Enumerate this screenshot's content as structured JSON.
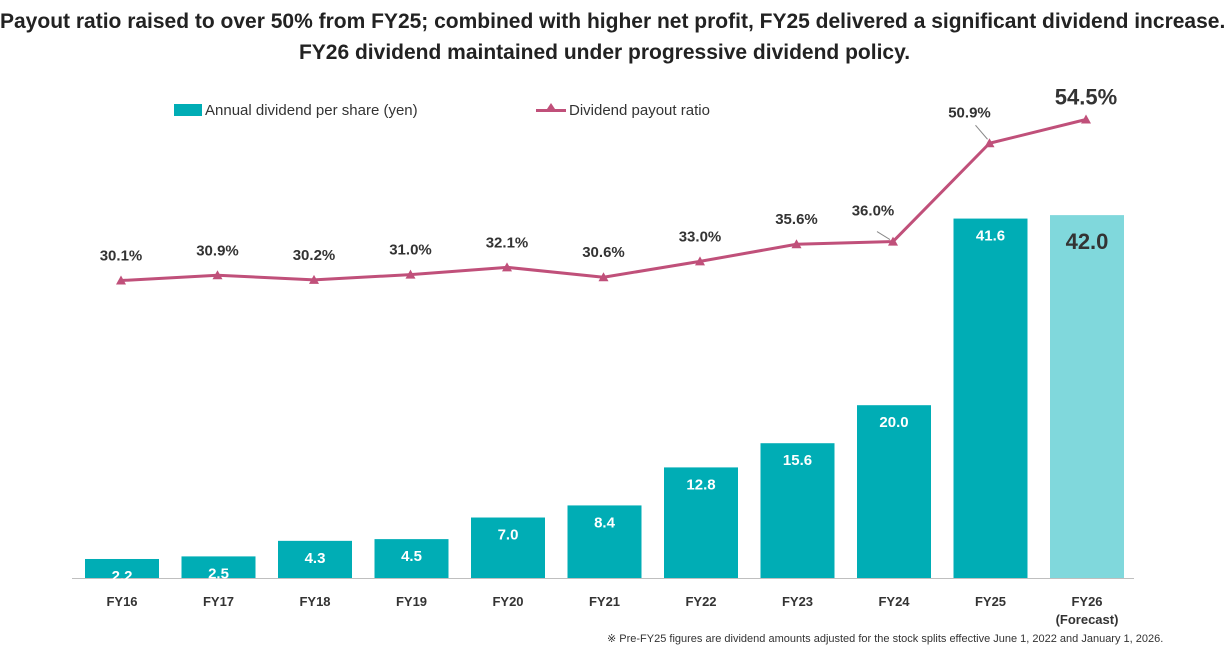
{
  "title": {
    "line1": "Payout ratio raised to over 50% from FY25; combined with higher net profit, FY25 delivered a significant dividend increase.",
    "line2": "FY26 dividend maintained under progressive dividend policy."
  },
  "footnote": "※ Pre-FY25 figures are dividend amounts adjusted for the stock splits effective June 1, 2022 and January 1, 2026.",
  "colors": {
    "bar": "#00adb5",
    "bar_forecast": "#80d8dc",
    "line": "#c0507a"
  },
  "chart_data": {
    "type": "bar+line",
    "categories": [
      "FY16",
      "FY17",
      "FY18",
      "FY19",
      "FY20",
      "FY21",
      "FY22",
      "FY23",
      "FY24",
      "FY25",
      "FY26\n(Forecast)"
    ],
    "series": [
      {
        "name": "Annual dividend per share (yen)",
        "type": "bar",
        "values": [
          2.2,
          2.5,
          4.3,
          4.5,
          7.0,
          8.4,
          12.8,
          15.6,
          20.0,
          41.6,
          42.0
        ],
        "labels": [
          "2.2",
          "2.5",
          "4.3",
          "4.5",
          "7.0",
          "8.4",
          "12.8",
          "15.6",
          "20.0",
          "41.6",
          "42.0"
        ]
      },
      {
        "name": "Dividend payout ratio",
        "type": "line",
        "values": [
          30.1,
          30.9,
          30.2,
          31.0,
          32.1,
          30.6,
          33.0,
          35.6,
          36.0,
          50.9,
          54.5
        ],
        "labels": [
          "30.1%",
          "30.9%",
          "30.2%",
          "31.0%",
          "32.1%",
          "30.6%",
          "33.0%",
          "35.6%",
          "36.0%",
          "50.9%",
          "54.5%"
        ]
      }
    ],
    "forecast_index": 10
  }
}
